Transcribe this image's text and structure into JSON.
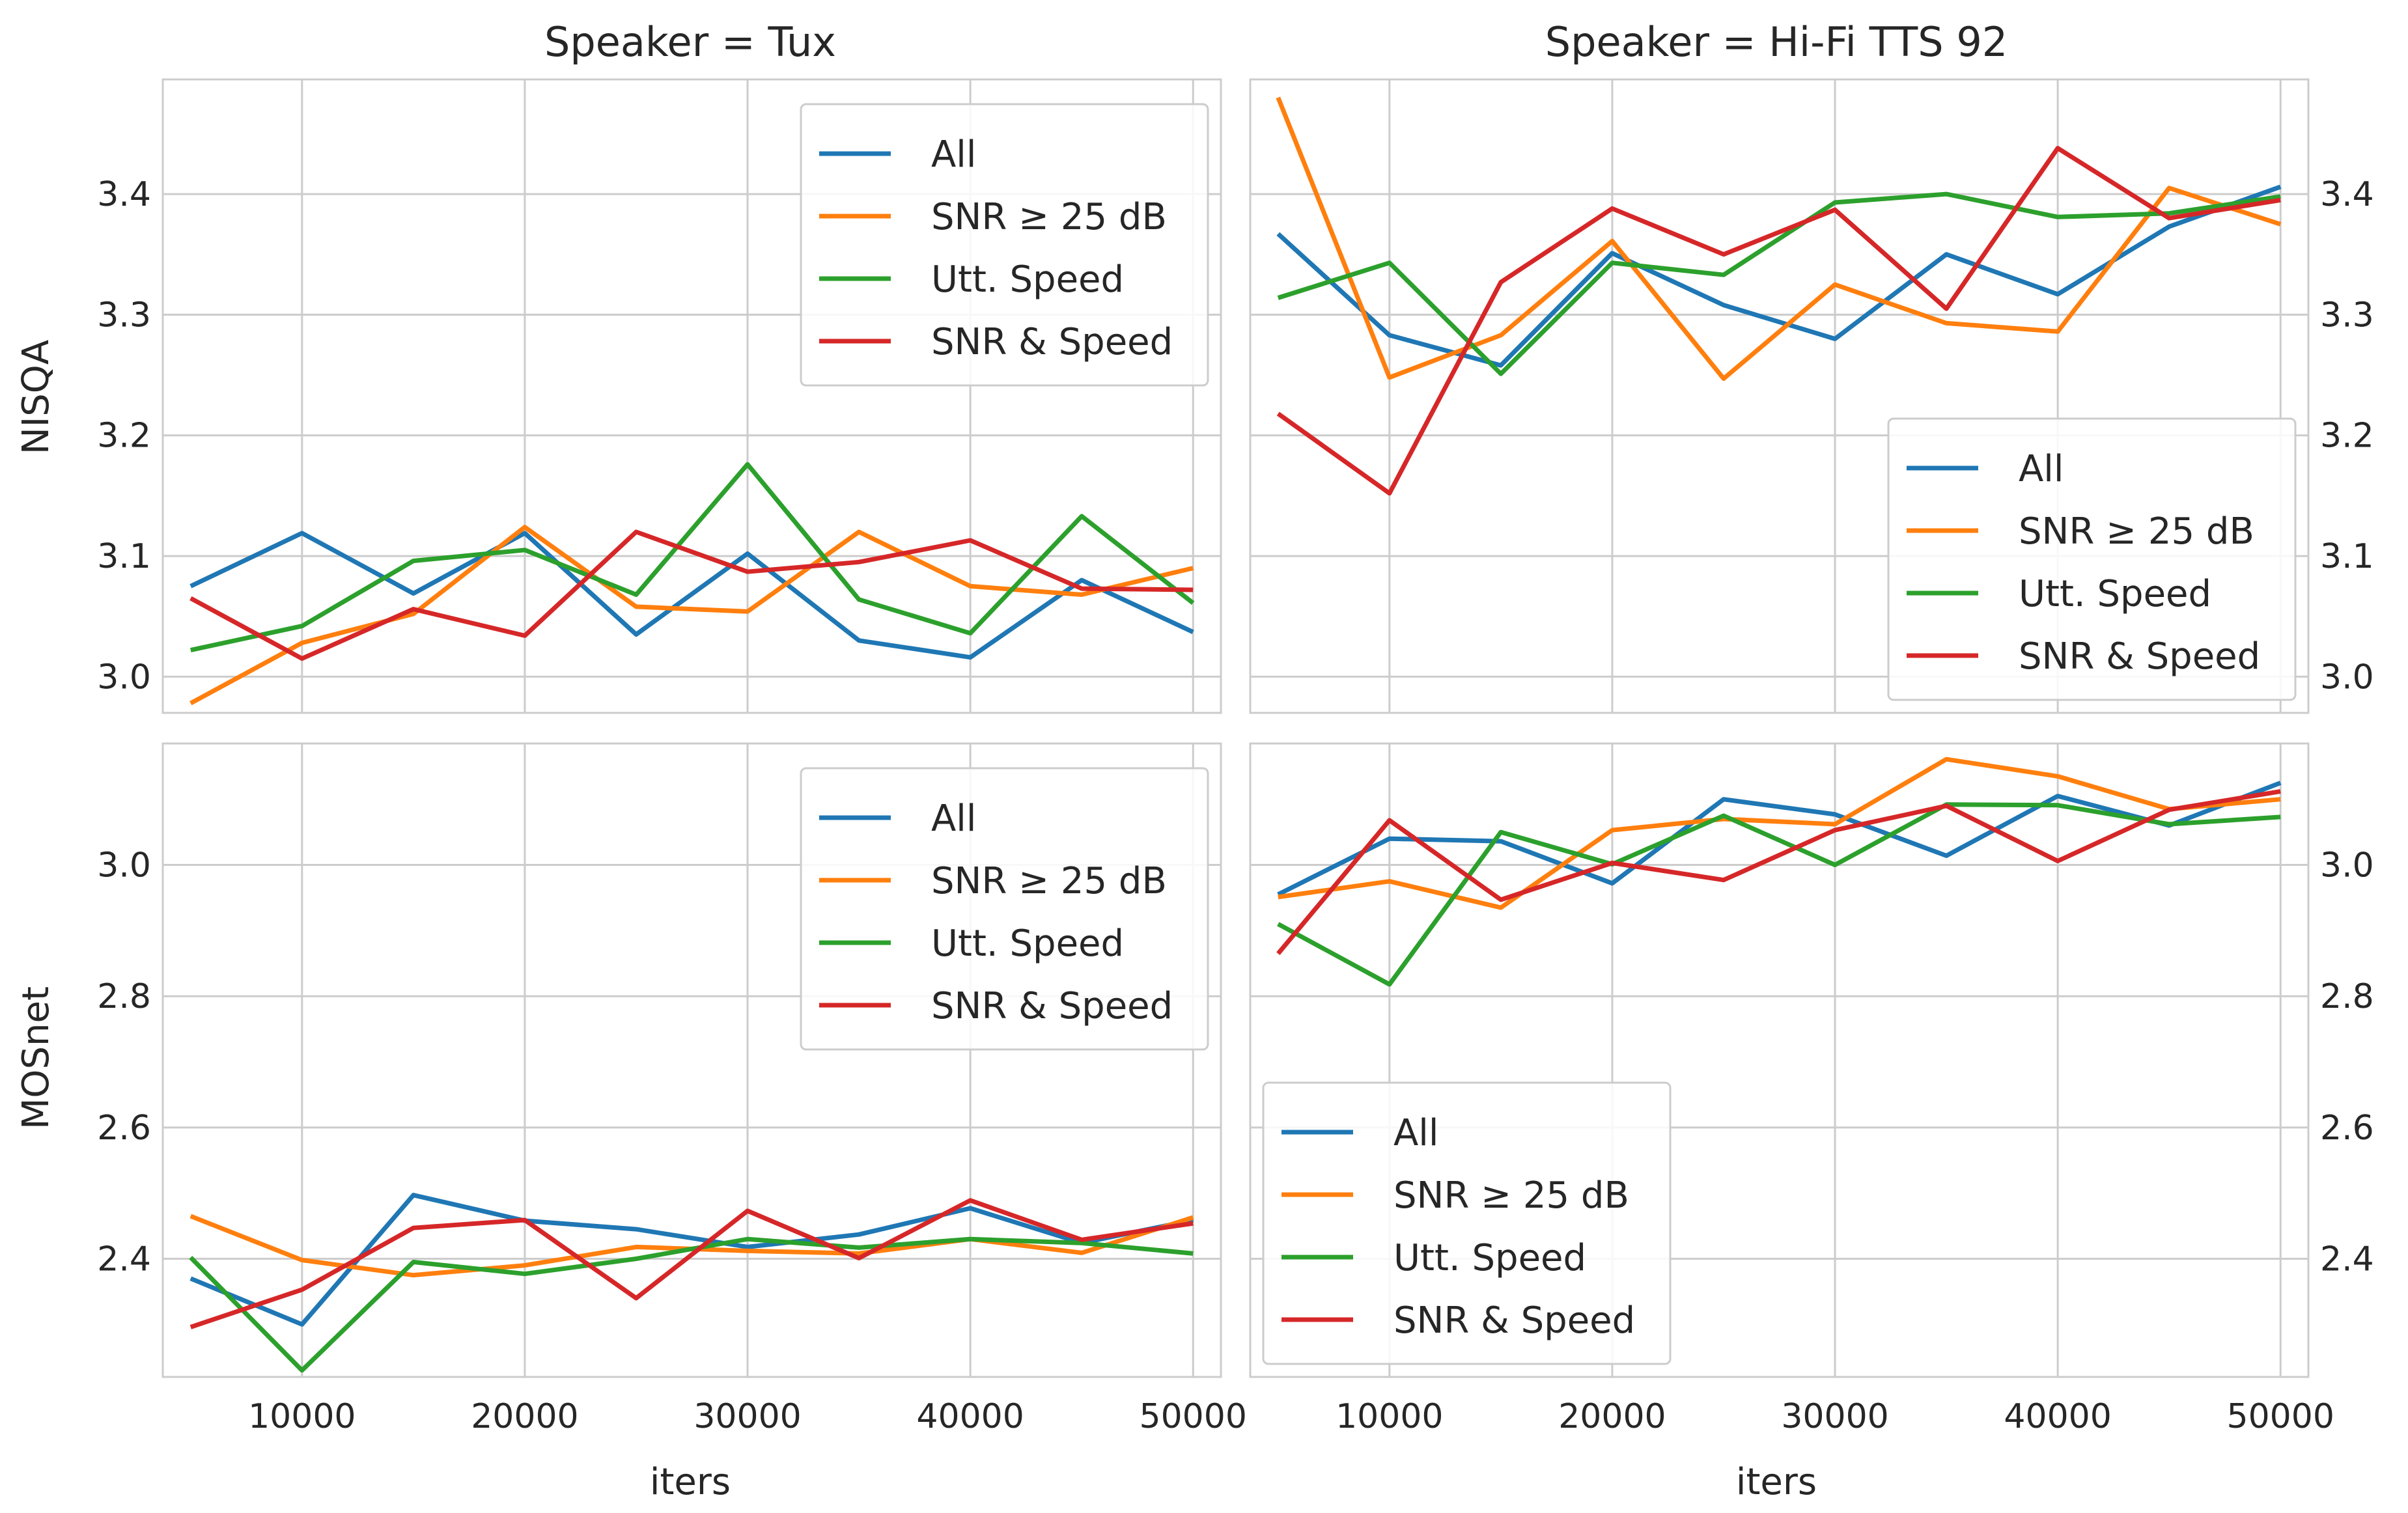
{
  "chart_data": {
    "type": "line",
    "x_label": "iters",
    "x": [
      5000,
      10000,
      15000,
      20000,
      25000,
      30000,
      35000,
      40000,
      45000,
      50000
    ],
    "x_ticks": [
      10000,
      20000,
      30000,
      40000,
      50000
    ],
    "series_names": [
      "All",
      "SNR ≥ 25 dB",
      "Utt. Speed",
      "SNR & Speed"
    ],
    "colors": [
      "#1f77b4",
      "#ff7f0e",
      "#2ca02c",
      "#d62728"
    ],
    "grid": true,
    "columns": [
      {
        "title": "Speaker = Tux"
      },
      {
        "title": "Speaker = Hi-Fi TTS 92"
      }
    ],
    "rows": [
      {
        "ylabel": "NISQA",
        "ylim": [
          2.97,
          3.495
        ],
        "yticks": [
          "3.0",
          "3.1",
          "3.2",
          "3.3",
          "3.4"
        ]
      },
      {
        "ylabel": "MOSnet",
        "ylim": [
          2.22,
          3.185
        ],
        "yticks": [
          "2.4",
          "2.6",
          "2.8",
          "3.0"
        ]
      }
    ],
    "panels": [
      {
        "row": 0,
        "col": 0,
        "legend": "upper right",
        "y_axis": "left",
        "series": [
          {
            "name": "All",
            "values": [
              3.075,
              3.119,
              3.069,
              3.119,
              3.035,
              3.102,
              3.03,
              3.016,
              3.08,
              3.037
            ]
          },
          {
            "name": "SNR ≥ 25 dB",
            "values": [
              2.978,
              3.028,
              3.052,
              3.124,
              3.058,
              3.054,
              3.12,
              3.075,
              3.068,
              3.09
            ]
          },
          {
            "name": "Utt. Speed",
            "values": [
              3.022,
              3.042,
              3.096,
              3.105,
              3.068,
              3.176,
              3.064,
              3.036,
              3.133,
              3.061
            ]
          },
          {
            "name": "SNR & Speed",
            "values": [
              3.065,
              3.015,
              3.056,
              3.034,
              3.12,
              3.087,
              3.095,
              3.113,
              3.073,
              3.072
            ]
          }
        ]
      },
      {
        "row": 0,
        "col": 1,
        "legend": "lower right",
        "y_axis": "right",
        "series": [
          {
            "name": "All",
            "values": [
              3.367,
              3.283,
              3.258,
              3.351,
              3.308,
              3.28,
              3.35,
              3.317,
              3.373,
              3.406
            ]
          },
          {
            "name": "SNR ≥ 25 dB",
            "values": [
              3.48,
              3.248,
              3.283,
              3.361,
              3.247,
              3.325,
              3.293,
              3.286,
              3.405,
              3.375
            ]
          },
          {
            "name": "Utt. Speed",
            "values": [
              3.314,
              3.343,
              3.251,
              3.343,
              3.333,
              3.393,
              3.4,
              3.381,
              3.384,
              3.398
            ]
          },
          {
            "name": "SNR & Speed",
            "values": [
              3.218,
              3.152,
              3.327,
              3.388,
              3.35,
              3.387,
              3.305,
              3.438,
              3.38,
              3.395
            ]
          }
        ]
      },
      {
        "row": 1,
        "col": 0,
        "legend": "upper right",
        "y_axis": "left",
        "series": [
          {
            "name": "All",
            "values": [
              2.37,
              2.3,
              2.497,
              2.458,
              2.445,
              2.418,
              2.437,
              2.477,
              2.424,
              2.459
            ]
          },
          {
            "name": "SNR ≥ 25 dB",
            "values": [
              2.465,
              2.398,
              2.375,
              2.39,
              2.418,
              2.412,
              2.408,
              2.43,
              2.409,
              2.463
            ]
          },
          {
            "name": "Utt. Speed",
            "values": [
              2.402,
              2.23,
              2.395,
              2.377,
              2.4,
              2.43,
              2.417,
              2.43,
              2.424,
              2.408
            ]
          },
          {
            "name": "SNR & Speed",
            "values": [
              2.296,
              2.353,
              2.447,
              2.459,
              2.34,
              2.473,
              2.401,
              2.489,
              2.429,
              2.454
            ]
          }
        ]
      },
      {
        "row": 1,
        "col": 1,
        "legend": "lower left",
        "y_axis": "right",
        "series": [
          {
            "name": "All",
            "values": [
              2.955,
              3.04,
              3.036,
              2.972,
              3.1,
              3.077,
              3.014,
              3.105,
              3.06,
              3.125
            ]
          },
          {
            "name": "SNR ≥ 25 dB",
            "values": [
              2.951,
              2.975,
              2.935,
              3.053,
              3.07,
              3.062,
              3.161,
              3.135,
              3.085,
              3.1
            ]
          },
          {
            "name": "Utt. Speed",
            "values": [
              2.91,
              2.818,
              3.05,
              3.001,
              3.075,
              3.0,
              3.092,
              3.091,
              3.062,
              3.073
            ]
          },
          {
            "name": "SNR & Speed",
            "values": [
              2.865,
              3.068,
              2.947,
              3.003,
              2.977,
              3.053,
              3.09,
              3.006,
              3.084,
              3.112
            ]
          }
        ]
      }
    ]
  }
}
